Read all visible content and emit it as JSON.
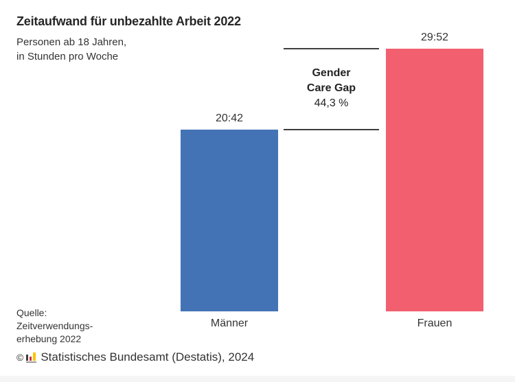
{
  "header": {
    "title": "Zeitaufwand für unbezahlte Arbeit 2022",
    "subtitle": [
      "Personen ab 18 Jahren,",
      "in Stunden pro Woche"
    ]
  },
  "chart_data": {
    "type": "bar",
    "categories": [
      "Männer",
      "Frauen"
    ],
    "values": [
      20.7,
      29.8667
    ],
    "value_labels": [
      "20:42",
      "29:52"
    ],
    "unit": "Stunden pro Woche",
    "colors": [
      "#4373b5",
      "#f25f6e"
    ],
    "ylim": [
      0,
      29.8667
    ],
    "grid": false,
    "legend": "none",
    "annotation": {
      "line1": "Gender",
      "line2": "Care Gap",
      "value": "44,3 %"
    }
  },
  "source": {
    "lines": [
      "Quelle:",
      "Zeitverwendungs-",
      "erhebung 2022"
    ]
  },
  "footer": {
    "copyright": "©",
    "text": "Statistisches Bundesamt (Destatis), 2024",
    "logo_colors": {
      "bar1": "#3c3c3c",
      "bar2": "#d22d3c",
      "bar3": "#fdc400",
      "base": "#9b9b9b"
    }
  }
}
